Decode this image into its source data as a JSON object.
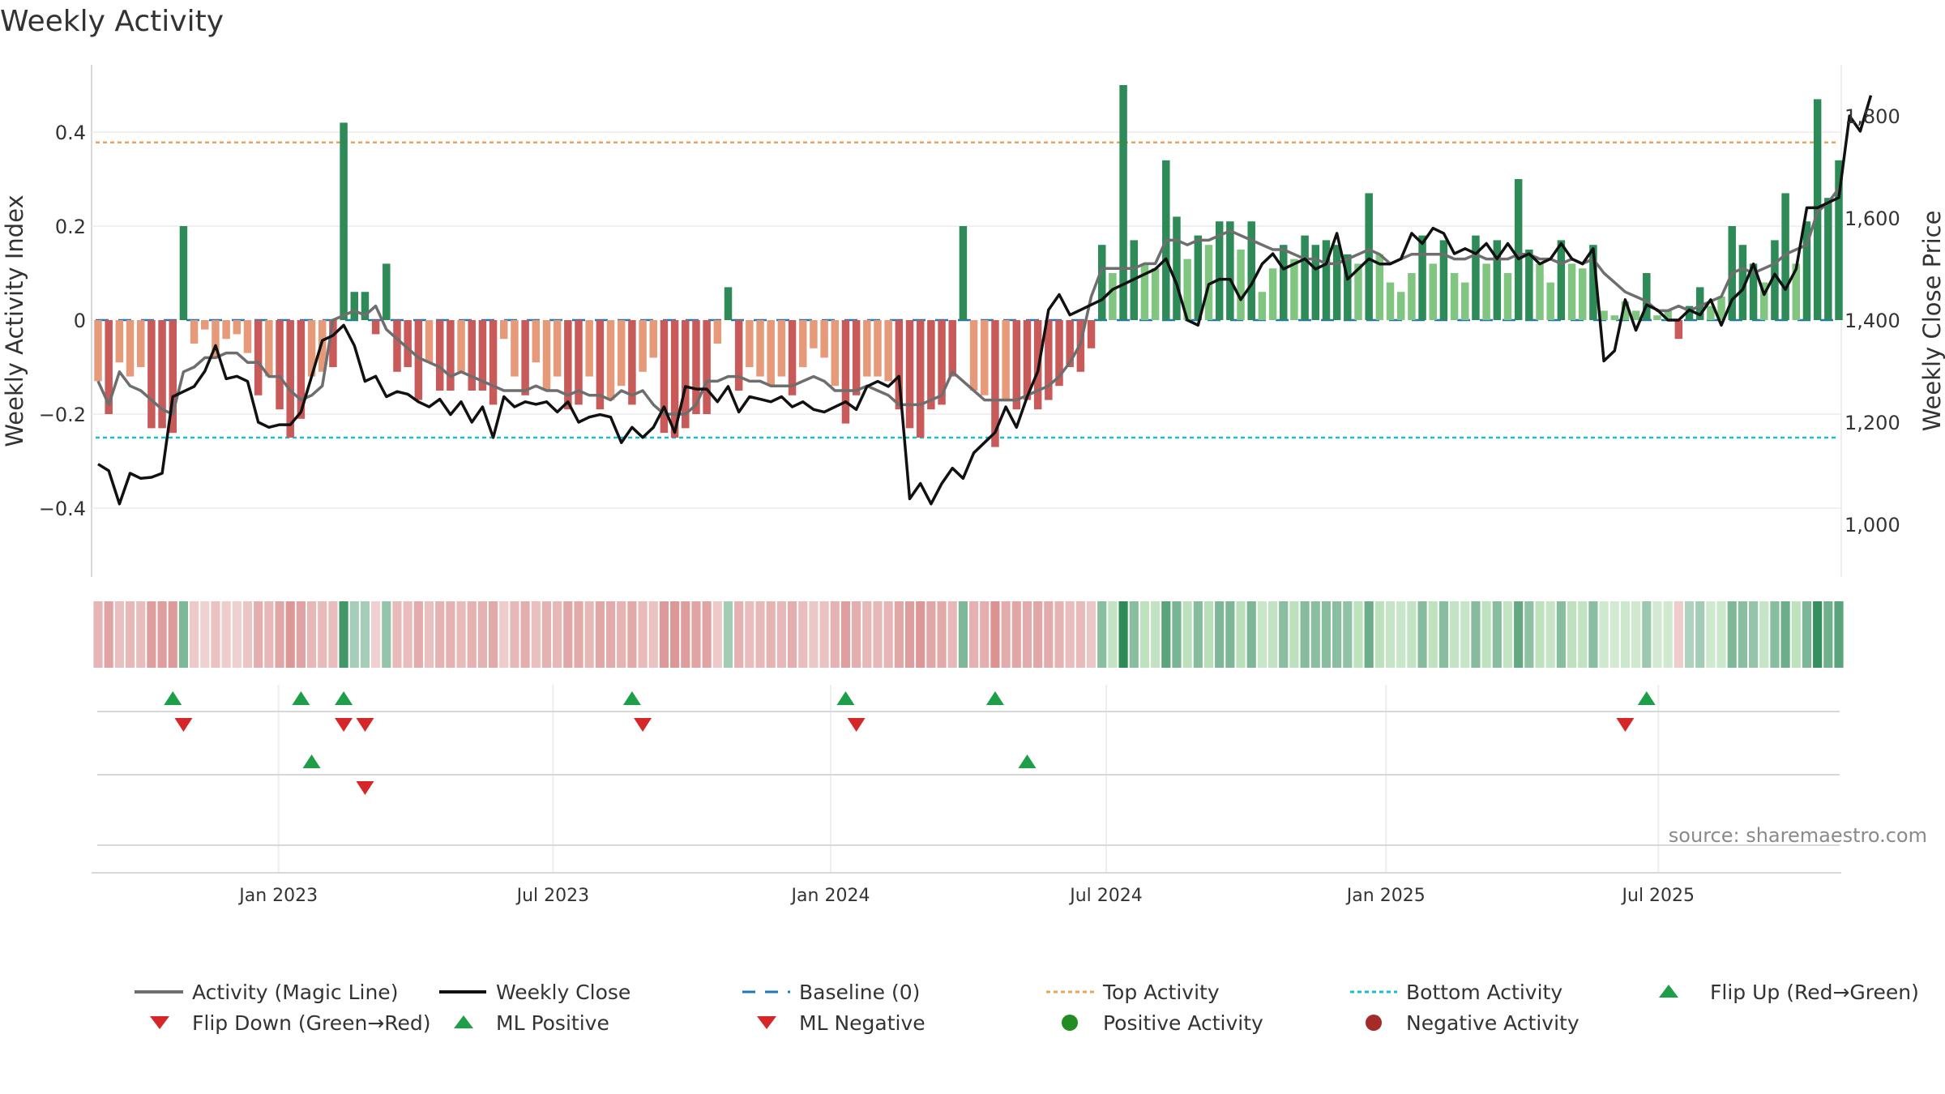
{
  "chart_data": {
    "type": "bar+line",
    "title": "Weekly Activity",
    "ylabel_left": "Weekly Activity Index",
    "ylabel_right": "Weekly Close Price",
    "ylim_left": [
      -0.54,
      0.54
    ],
    "ylim_right": [
      900,
      1900
    ],
    "yticks_left": [
      "0.4",
      "0.2",
      "0",
      "−0.2",
      "−0.4"
    ],
    "yticks_left_values": [
      0.4,
      0.2,
      0,
      -0.2,
      -0.4
    ],
    "yticks_right": [
      "1,800",
      "1,600",
      "1,400",
      "1,200",
      "1,000"
    ],
    "yticks_right_values": [
      1800,
      1600,
      1400,
      1200,
      1000
    ],
    "x_start": "2022-09-05",
    "x_ticks": [
      "Jan 2023",
      "Jul 2023",
      "Jan 2024",
      "Jul 2024",
      "Jan 2025",
      "Jul 2025"
    ],
    "x_tick_weeks": [
      16.9,
      42.6,
      68.6,
      94.4,
      120.6,
      146.1
    ],
    "top_activity": 0.378,
    "bottom_activity": -0.25,
    "baseline": 0,
    "activity": [
      -0.13,
      -0.2,
      -0.09,
      -0.12,
      -0.1,
      -0.23,
      -0.23,
      -0.24,
      0.2,
      -0.05,
      -0.02,
      -0.08,
      -0.04,
      -0.03,
      -0.07,
      -0.16,
      -0.12,
      -0.19,
      -0.25,
      -0.21,
      -0.12,
      -0.11,
      -0.1,
      0.42,
      0.06,
      0.06,
      -0.03,
      0.12,
      -0.11,
      -0.1,
      -0.17,
      -0.09,
      -0.15,
      -0.15,
      -0.11,
      -0.15,
      -0.15,
      -0.18,
      -0.04,
      -0.12,
      -0.16,
      -0.09,
      -0.15,
      -0.12,
      -0.19,
      -0.18,
      -0.12,
      -0.19,
      -0.17,
      -0.14,
      -0.18,
      -0.11,
      -0.08,
      -0.24,
      -0.25,
      -0.23,
      -0.2,
      -0.2,
      -0.05,
      0.07,
      -0.15,
      -0.1,
      -0.12,
      -0.14,
      -0.12,
      -0.16,
      -0.1,
      -0.06,
      -0.08,
      -0.14,
      -0.22,
      -0.16,
      -0.12,
      -0.12,
      -0.13,
      -0.19,
      -0.23,
      -0.25,
      -0.19,
      -0.18,
      -0.12,
      0.2,
      -0.15,
      -0.16,
      -0.27,
      -0.17,
      -0.19,
      -0.17,
      -0.19,
      -0.17,
      -0.14,
      -0.1,
      -0.11,
      -0.06,
      0.16,
      0.1,
      0.5,
      0.17,
      0.12,
      0.11,
      0.34,
      0.22,
      0.13,
      0.18,
      0.16,
      0.21,
      0.21,
      0.15,
      0.21,
      0.06,
      0.11,
      0.16,
      0.13,
      0.18,
      0.16,
      0.17,
      0.16,
      0.14,
      0.12,
      0.27,
      0.14,
      0.08,
      0.06,
      0.1,
      0.18,
      0.12,
      0.17,
      0.1,
      0.08,
      0.18,
      0.12,
      0.17,
      0.1,
      0.3,
      0.15,
      0.12,
      0.08,
      0.17,
      0.12,
      0.11,
      0.16,
      0.02,
      0.01,
      0.04,
      0.02,
      0.1,
      0.01,
      0.02,
      -0.04,
      0.03,
      0.07,
      0.03,
      0.05,
      0.2,
      0.16,
      0.12,
      0.08,
      0.17,
      0.27,
      0.12,
      0.21,
      0.47,
      0.26,
      0.34
    ],
    "magic_line": [
      -0.13,
      -0.18,
      -0.11,
      -0.14,
      -0.15,
      -0.17,
      -0.19,
      -0.2,
      -0.11,
      -0.1,
      -0.08,
      -0.08,
      -0.07,
      -0.07,
      -0.09,
      -0.09,
      -0.12,
      -0.12,
      -0.15,
      -0.17,
      -0.16,
      -0.14,
      0.0,
      0.01,
      0.02,
      0.01,
      0.03,
      -0.02,
      -0.04,
      -0.06,
      -0.08,
      -0.09,
      -0.1,
      -0.12,
      -0.11,
      -0.12,
      -0.13,
      -0.14,
      -0.15,
      -0.15,
      -0.15,
      -0.14,
      -0.15,
      -0.15,
      -0.16,
      -0.15,
      -0.16,
      -0.16,
      -0.17,
      -0.15,
      -0.16,
      -0.15,
      -0.18,
      -0.2,
      -0.2,
      -0.2,
      -0.18,
      -0.13,
      -0.13,
      -0.12,
      -0.12,
      -0.13,
      -0.13,
      -0.14,
      -0.14,
      -0.14,
      -0.13,
      -0.12,
      -0.13,
      -0.15,
      -0.15,
      -0.15,
      -0.14,
      -0.15,
      -0.16,
      -0.18,
      -0.18,
      -0.18,
      -0.17,
      -0.16,
      -0.11,
      -0.13,
      -0.15,
      -0.17,
      -0.17,
      -0.17,
      -0.17,
      -0.16,
      -0.15,
      -0.14,
      -0.12,
      -0.09,
      -0.05,
      0.05,
      0.11,
      0.11,
      0.11,
      0.11,
      0.12,
      0.12,
      0.17,
      0.17,
      0.16,
      0.17,
      0.17,
      0.18,
      0.19,
      0.18,
      0.17,
      0.16,
      0.15,
      0.15,
      0.14,
      0.13,
      0.13,
      0.12,
      0.12,
      0.13,
      0.14,
      0.15,
      0.14,
      0.12,
      0.13,
      0.14,
      0.14,
      0.14,
      0.14,
      0.13,
      0.13,
      0.14,
      0.13,
      0.13,
      0.13,
      0.14,
      0.14,
      0.13,
      0.13,
      0.12,
      0.13,
      0.12,
      0.13,
      0.1,
      0.08,
      0.06,
      0.05,
      0.04,
      0.02,
      0.02,
      0.03,
      0.02,
      0.03,
      0.04,
      0.05,
      0.1,
      0.11,
      0.1,
      0.11,
      0.12,
      0.14,
      0.15,
      0.16,
      0.23,
      0.25,
      0.28
    ],
    "weekly_close": [
      1118,
      1105,
      1040,
      1100,
      1090,
      1092,
      1100,
      1250,
      1260,
      1270,
      1300,
      1350,
      1285,
      1290,
      1280,
      1200,
      1190,
      1195,
      1195,
      1220,
      1290,
      1360,
      1370,
      1390,
      1350,
      1280,
      1290,
      1250,
      1260,
      1255,
      1240,
      1230,
      1245,
      1215,
      1240,
      1200,
      1230,
      1170,
      1250,
      1230,
      1240,
      1235,
      1240,
      1220,
      1240,
      1200,
      1210,
      1215,
      1210,
      1160,
      1190,
      1170,
      1190,
      1230,
      1180,
      1270,
      1265,
      1265,
      1240,
      1270,
      1220,
      1250,
      1245,
      1240,
      1250,
      1230,
      1240,
      1225,
      1220,
      1230,
      1240,
      1225,
      1270,
      1280,
      1270,
      1290,
      1050,
      1080,
      1040,
      1080,
      1110,
      1090,
      1140,
      1160,
      1180,
      1230,
      1190,
      1250,
      1300,
      1420,
      1450,
      1410,
      1420,
      1430,
      1440,
      1460,
      1470,
      1480,
      1490,
      1500,
      1520,
      1470,
      1400,
      1390,
      1470,
      1480,
      1480,
      1440,
      1470,
      1510,
      1530,
      1500,
      1510,
      1520,
      1500,
      1510,
      1570,
      1480,
      1500,
      1520,
      1510,
      1510,
      1520,
      1570,
      1550,
      1580,
      1570,
      1530,
      1540,
      1530,
      1550,
      1520,
      1550,
      1520,
      1530,
      1510,
      1520,
      1550,
      1520,
      1510,
      1540,
      1320,
      1340,
      1440,
      1380,
      1430,
      1420,
      1400,
      1400,
      1420,
      1410,
      1440,
      1390,
      1440,
      1460,
      1510,
      1450,
      1490,
      1460,
      1500,
      1620,
      1620,
      1630,
      1640,
      1800,
      1770,
      1840
    ]
  },
  "legend": [
    "Activity (Magic Line)",
    "Weekly Close",
    "Baseline (0)",
    "Top Activity",
    "Bottom Activity",
    "Flip Up (Red→Green)",
    "Flip Down (Green→Red)",
    "ML Positive",
    "ML Negative",
    "Positive Activity",
    "Negative Activity"
  ],
  "markers": {
    "flip_up_weeks": [
      7,
      19,
      23,
      50,
      70,
      84,
      145
    ],
    "flip_down_weeks": [
      8,
      23,
      25,
      51,
      71,
      143
    ],
    "ml_positive_weeks": [
      20,
      87
    ],
    "ml_negative_weeks": [
      25
    ]
  },
  "colors": {
    "strong_green": "#2e8b57",
    "light_green": "#80c680",
    "strong_red": "#c85a5a",
    "light_red": "#e69a7a",
    "magic_line": "#6e6e6e",
    "close_line": "#111111",
    "baseline": "#1f77b4",
    "top_line": "#e8a35b",
    "bottom_line": "#17becf",
    "up_marker": "#1e9e48",
    "down_marker": "#d62728"
  },
  "source": "source: sharemaestro.com"
}
